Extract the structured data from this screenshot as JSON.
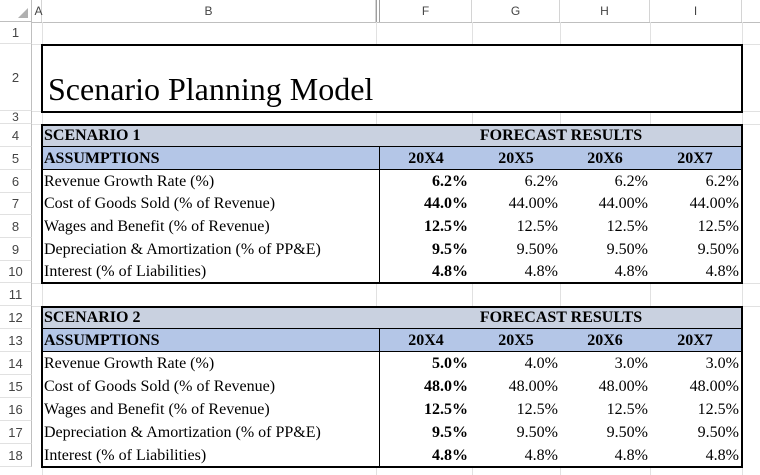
{
  "column_headers": [
    "A",
    "B",
    "F",
    "G",
    "H",
    "I"
  ],
  "row_numbers": [
    "1",
    "2",
    "3",
    "4",
    "5",
    "6",
    "7",
    "8",
    "9",
    "10",
    "11",
    "12",
    "13",
    "14",
    "15",
    "16",
    "17",
    "18"
  ],
  "title": "Scenario Planning Model",
  "scenario1": {
    "label": "SCENARIO 1",
    "forecast_label": "FORECAST RESULTS",
    "assumptions_label": "ASSUMPTIONS",
    "years": [
      "20X4",
      "20X5",
      "20X6",
      "20X7"
    ],
    "rows": [
      {
        "label": "Revenue Growth Rate (%)",
        "values": [
          "6.2%",
          "6.2%",
          "6.2%",
          "6.2%"
        ]
      },
      {
        "label": "Cost of Goods Sold (% of Revenue)",
        "values": [
          "44.0%",
          "44.00%",
          "44.00%",
          "44.00%"
        ]
      },
      {
        "label": "Wages and Benefit (% of Revenue)",
        "values": [
          "12.5%",
          "12.5%",
          "12.5%",
          "12.5%"
        ]
      },
      {
        "label": "Depreciation & Amortization (% of PP&E)",
        "values": [
          "9.5%",
          "9.50%",
          "9.50%",
          "9.50%"
        ]
      },
      {
        "label": "Interest (% of Liabilities)",
        "values": [
          "4.8%",
          "4.8%",
          "4.8%",
          "4.8%"
        ]
      }
    ]
  },
  "scenario2": {
    "label": "SCENARIO 2",
    "forecast_label": "FORECAST RESULTS",
    "assumptions_label": "ASSUMPTIONS",
    "years": [
      "20X4",
      "20X5",
      "20X6",
      "20X7"
    ],
    "rows": [
      {
        "label": "Revenue Growth Rate (%)",
        "values": [
          "5.0%",
          "4.0%",
          "3.0%",
          "3.0%"
        ]
      },
      {
        "label": "Cost of Goods Sold (% of Revenue)",
        "values": [
          "48.0%",
          "48.00%",
          "48.00%",
          "48.00%"
        ]
      },
      {
        "label": "Wages and Benefit (% of Revenue)",
        "values": [
          "12.5%",
          "12.5%",
          "12.5%",
          "12.5%"
        ]
      },
      {
        "label": "Depreciation & Amortization (% of PP&E)",
        "values": [
          "9.5%",
          "9.50%",
          "9.50%",
          "9.50%"
        ]
      },
      {
        "label": "Interest (% of Liabilities)",
        "values": [
          "4.8%",
          "4.8%",
          "4.8%",
          "4.8%"
        ]
      }
    ]
  },
  "colors": {
    "band_header": "#c9d1e0",
    "band_assumptions": "#b4c6e7"
  }
}
